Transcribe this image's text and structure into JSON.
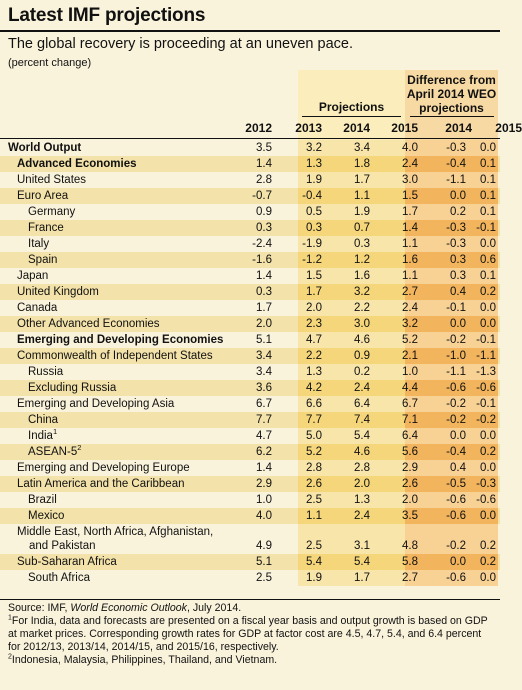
{
  "title": "Latest IMF projections",
  "subtitle": "The global recovery is proceeding at an uneven pace.",
  "unit": "(percent change)",
  "projections_label": "Projections",
  "difference_label": "Difference from April 2014 WEO projections",
  "years": [
    "2012",
    "2013",
    "2014",
    "2015",
    "2014",
    "2015"
  ],
  "rows": [
    {
      "label": "World Output",
      "values": [
        "3.5",
        "3.2",
        "3.4",
        "4.0",
        "-0.3",
        "0.0"
      ],
      "indent": 0,
      "bold": true,
      "band": false
    },
    {
      "label": "Advanced Economies",
      "values": [
        "1.4",
        "1.3",
        "1.8",
        "2.4",
        "-0.4",
        "0.1"
      ],
      "indent": 1,
      "bold": true,
      "band": true
    },
    {
      "label": "United States",
      "values": [
        "2.8",
        "1.9",
        "1.7",
        "3.0",
        "-1.1",
        "0.1"
      ],
      "indent": 1,
      "bold": false,
      "band": false
    },
    {
      "label": "Euro Area",
      "values": [
        "-0.7",
        "-0.4",
        "1.1",
        "1.5",
        "0.0",
        "0.1"
      ],
      "indent": 1,
      "bold": false,
      "band": true
    },
    {
      "label": "Germany",
      "values": [
        "0.9",
        "0.5",
        "1.9",
        "1.7",
        "0.2",
        "0.1"
      ],
      "indent": 2,
      "bold": false,
      "band": false
    },
    {
      "label": "France",
      "values": [
        "0.3",
        "0.3",
        "0.7",
        "1.4",
        "-0.3",
        "-0.1"
      ],
      "indent": 2,
      "bold": false,
      "band": true
    },
    {
      "label": "Italy",
      "values": [
        "-2.4",
        "-1.9",
        "0.3",
        "1.1",
        "-0.3",
        "0.0"
      ],
      "indent": 2,
      "bold": false,
      "band": false
    },
    {
      "label": "Spain",
      "values": [
        "-1.6",
        "-1.2",
        "1.2",
        "1.6",
        "0.3",
        "0.6"
      ],
      "indent": 2,
      "bold": false,
      "band": true
    },
    {
      "label": "Japan",
      "values": [
        "1.4",
        "1.5",
        "1.6",
        "1.1",
        "0.3",
        "0.1"
      ],
      "indent": 1,
      "bold": false,
      "band": false
    },
    {
      "label": "United Kingdom",
      "values": [
        "0.3",
        "1.7",
        "3.2",
        "2.7",
        "0.4",
        "0.2"
      ],
      "indent": 1,
      "bold": false,
      "band": true
    },
    {
      "label": "Canada",
      "values": [
        "1.7",
        "2.0",
        "2.2",
        "2.4",
        "-0.1",
        "0.0"
      ],
      "indent": 1,
      "bold": false,
      "band": false
    },
    {
      "label": "Other Advanced Economies",
      "values": [
        "2.0",
        "2.3",
        "3.0",
        "3.2",
        "0.0",
        "0.0"
      ],
      "indent": 1,
      "bold": false,
      "band": true
    },
    {
      "label": "Emerging and Developing Economies",
      "values": [
        "5.1",
        "4.7",
        "4.6",
        "5.2",
        "-0.2",
        "-0.1"
      ],
      "indent": 1,
      "bold": true,
      "band": false
    },
    {
      "label": "Commonwealth of Independent States",
      "values": [
        "3.4",
        "2.2",
        "0.9",
        "2.1",
        "-1.0",
        "-1.1"
      ],
      "indent": 1,
      "bold": false,
      "band": true
    },
    {
      "label": "Russia",
      "values": [
        "3.4",
        "1.3",
        "0.2",
        "1.0",
        "-1.1",
        "-1.3"
      ],
      "indent": 2,
      "bold": false,
      "band": false
    },
    {
      "label": "Excluding Russia",
      "values": [
        "3.6",
        "4.2",
        "2.4",
        "4.4",
        "-0.6",
        "-0.6"
      ],
      "indent": 2,
      "bold": false,
      "band": true
    },
    {
      "label": "Emerging and Developing Asia",
      "values": [
        "6.7",
        "6.6",
        "6.4",
        "6.7",
        "-0.2",
        "-0.1"
      ],
      "indent": 1,
      "bold": false,
      "band": false
    },
    {
      "label": "China",
      "values": [
        "7.7",
        "7.7",
        "7.4",
        "7.1",
        "-0.2",
        "-0.2"
      ],
      "indent": 2,
      "bold": false,
      "band": true
    },
    {
      "label": "India",
      "sup": "1",
      "values": [
        "4.7",
        "5.0",
        "5.4",
        "6.4",
        "0.0",
        "0.0"
      ],
      "indent": 2,
      "bold": false,
      "band": false
    },
    {
      "label": "ASEAN-5",
      "sup": "2",
      "values": [
        "6.2",
        "5.2",
        "4.6",
        "5.6",
        "-0.4",
        "0.2"
      ],
      "indent": 2,
      "bold": false,
      "band": true
    },
    {
      "label": "Emerging and Developing Europe",
      "values": [
        "1.4",
        "2.8",
        "2.8",
        "2.9",
        "0.4",
        "0.0"
      ],
      "indent": 1,
      "bold": false,
      "band": false
    },
    {
      "label": "Latin America and the Caribbean",
      "values": [
        "2.9",
        "2.6",
        "2.0",
        "2.6",
        "-0.5",
        "-0.3"
      ],
      "indent": 1,
      "bold": false,
      "band": true
    },
    {
      "label": "Brazil",
      "values": [
        "1.0",
        "2.5",
        "1.3",
        "2.0",
        "-0.6",
        "-0.6"
      ],
      "indent": 2,
      "bold": false,
      "band": false
    },
    {
      "label": "Mexico",
      "values": [
        "4.0",
        "1.1",
        "2.4",
        "3.5",
        "-0.6",
        "0.0"
      ],
      "indent": 2,
      "bold": false,
      "band": true
    },
    {
      "label": "Middle East, North Africa, Afghanistan,",
      "label2": "and Pakistan",
      "values": [
        "4.9",
        "2.5",
        "3.1",
        "4.8",
        "-0.2",
        "0.2"
      ],
      "indent": 1,
      "bold": false,
      "band": false,
      "tall": true
    },
    {
      "label": "Sub-Saharan Africa",
      "values": [
        "5.1",
        "5.4",
        "5.4",
        "5.8",
        "0.0",
        "0.2"
      ],
      "indent": 1,
      "bold": false,
      "band": true
    },
    {
      "label": "South Africa",
      "values": [
        "2.5",
        "1.9",
        "1.7",
        "2.7",
        "-0.6",
        "0.0"
      ],
      "indent": 2,
      "bold": false,
      "band": false
    }
  ],
  "source_prefix": "Source: IMF, ",
  "source_title": "World Economic Outlook",
  "source_suffix": ", July 2014.",
  "note1_mark": "1",
  "note1": "For India, data and forecasts are presented on a fiscal year basis and output growth is based on GDP at market prices. Corresponding growth rates for GDP at factor cost are 4.5, 4.7, 5.4, and 6.4 percent for 2012/13, 2013/14, 2014/15, and 2015/16, respectively.",
  "note2_mark": "2",
  "note2": "Indonesia, Malaysia, Philippines, Thailand, and Vietnam."
}
